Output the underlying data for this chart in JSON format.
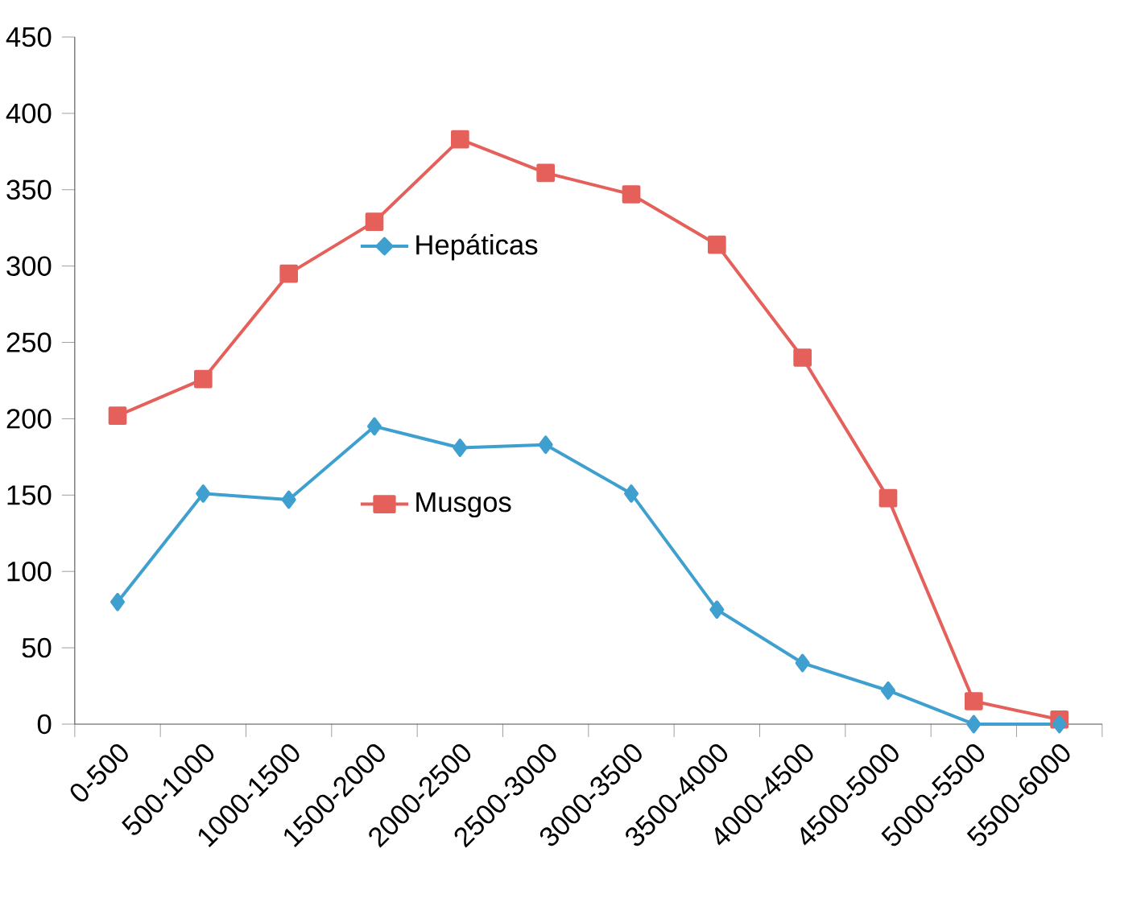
{
  "chart_data": {
    "type": "line",
    "categories": [
      "0-500",
      "500-1000",
      "1000-1500",
      "1500-2000",
      "2000-2500",
      "2500-3000",
      "3000-3500",
      "3500-4000",
      "4000-4500",
      "4500-5000",
      "5000-5500",
      "5500-6000"
    ],
    "series": [
      {
        "name": "Musgos",
        "color": "#e5605a",
        "marker": "square",
        "values": [
          202,
          226,
          295,
          329,
          383,
          361,
          347,
          314,
          240,
          148,
          15,
          3
        ]
      },
      {
        "name": "Hepáticas",
        "color": "#3fa0cf",
        "marker": "diamond",
        "values": [
          80,
          151,
          147,
          195,
          181,
          183,
          151,
          75,
          40,
          22,
          0,
          0
        ]
      }
    ],
    "ylim": [
      0,
      450
    ],
    "yticks": [
      0,
      50,
      100,
      150,
      200,
      250,
      300,
      350,
      400,
      450
    ],
    "grid": false,
    "legend": "center",
    "line_style": "solid"
  }
}
